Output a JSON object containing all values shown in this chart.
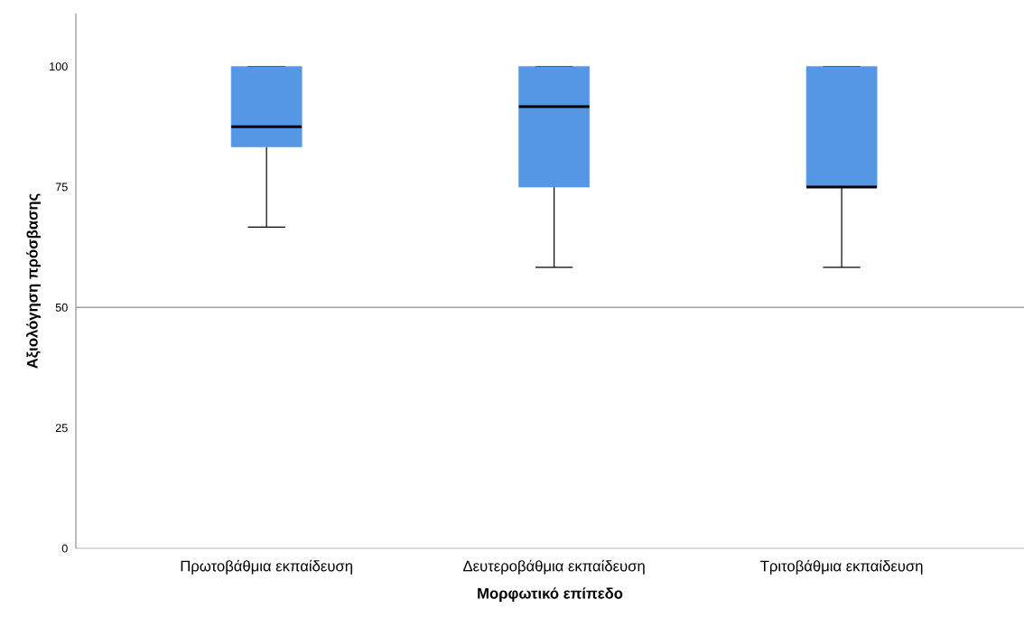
{
  "chart_data": {
    "type": "box",
    "xlabel": "Μορφωτικό επίπεδο",
    "ylabel": "Αξιολόγηση πρόσβασης",
    "categories": [
      "Πρωτοβάθμια εκπαίδευση",
      "Δευτεροβάθμια εκπαίδευση",
      "Τριτοβάθμια εκπαίδευση"
    ],
    "color": "#5596e5",
    "boxes": [
      {
        "low": 66.67,
        "q1": 83.33,
        "median": 87.5,
        "q3": 100,
        "high": 100
      },
      {
        "low": 58.33,
        "q1": 75,
        "median": 91.67,
        "q3": 100,
        "high": 100
      },
      {
        "low": 58.33,
        "q1": 75,
        "median": 75,
        "q3": 100,
        "high": 100
      }
    ],
    "ylim": [
      0,
      111
    ],
    "yticks": [
      0,
      25,
      50,
      75,
      100
    ],
    "ref_lines": [
      {
        "axis": "y",
        "value": 50,
        "color": "#a0a0a0"
      }
    ]
  }
}
